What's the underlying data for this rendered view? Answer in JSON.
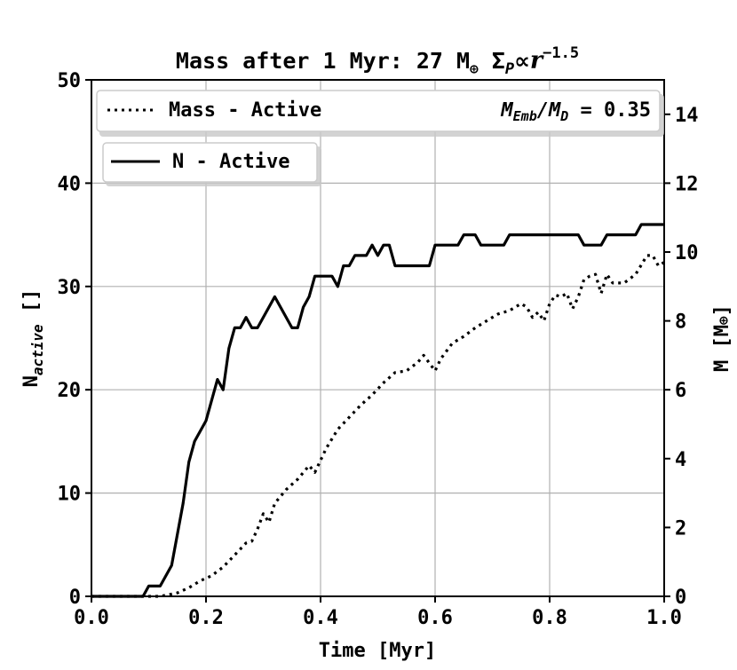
{
  "chart_data": {
    "type": "line",
    "title": {
      "prefix": "Mass after 1 Myr: 27 M",
      "earth_symbol": "⊕",
      "sigma": "Σ",
      "sigma_sub": "P",
      "prop": "∝",
      "r": "r",
      "exponent": "−1.5"
    },
    "xlabel": "Time [Myr]",
    "ylabel_left": {
      "main": "N",
      "sub": "active",
      "rest": " []"
    },
    "ylabel_right": {
      "main": "M [M",
      "symbol": "⊕",
      "close": "]"
    },
    "xlim": [
      0,
      1
    ],
    "ylim_left": [
      0,
      50
    ],
    "ylim_right": [
      0,
      15
    ],
    "x_ticks": [
      0,
      0.2,
      0.4,
      0.6,
      0.8,
      1
    ],
    "x_tick_labels": [
      "0.0",
      "0.2",
      "0.4",
      "0.6",
      "0.8",
      "1.0"
    ],
    "y_left_ticks": [
      0,
      10,
      20,
      30,
      40,
      50
    ],
    "y_left_tick_labels": [
      "0",
      "10",
      "20",
      "30",
      "40",
      "50"
    ],
    "y_right_ticks": [
      0,
      2,
      4,
      6,
      8,
      10,
      12,
      14
    ],
    "y_right_tick_labels": [
      "0",
      "2",
      "4",
      "6",
      "8",
      "10",
      "12",
      "14"
    ],
    "grid": true,
    "legend_top": {
      "label": "Mass - Active",
      "ratio": {
        "m": "M",
        "sub1": "Emb",
        "slash": "/M",
        "sub2": "D",
        "value": " = 0.35"
      }
    },
    "legend_second": {
      "label": "N - Active"
    },
    "series": [
      {
        "name": "N - Active",
        "axis": "left",
        "style": "solid",
        "points": [
          [
            0,
            0
          ],
          [
            0.09,
            0
          ],
          [
            0.1,
            1
          ],
          [
            0.12,
            1
          ],
          [
            0.14,
            3
          ],
          [
            0.16,
            9
          ],
          [
            0.17,
            13
          ],
          [
            0.18,
            15
          ],
          [
            0.2,
            17
          ],
          [
            0.22,
            21
          ],
          [
            0.23,
            20
          ],
          [
            0.24,
            24
          ],
          [
            0.25,
            26
          ],
          [
            0.26,
            26
          ],
          [
            0.27,
            27
          ],
          [
            0.28,
            26
          ],
          [
            0.29,
            26
          ],
          [
            0.32,
            29
          ],
          [
            0.35,
            26
          ],
          [
            0.36,
            26
          ],
          [
            0.37,
            28
          ],
          [
            0.38,
            29
          ],
          [
            0.39,
            31
          ],
          [
            0.42,
            31
          ],
          [
            0.43,
            30
          ],
          [
            0.44,
            32
          ],
          [
            0.45,
            32
          ],
          [
            0.46,
            33
          ],
          [
            0.48,
            33
          ],
          [
            0.49,
            34
          ],
          [
            0.5,
            33
          ],
          [
            0.51,
            34
          ],
          [
            0.52,
            34
          ],
          [
            0.53,
            32
          ],
          [
            0.59,
            32
          ],
          [
            0.6,
            34
          ],
          [
            0.64,
            34
          ],
          [
            0.65,
            35
          ],
          [
            0.67,
            35
          ],
          [
            0.68,
            34
          ],
          [
            0.72,
            34
          ],
          [
            0.73,
            35
          ],
          [
            0.85,
            35
          ],
          [
            0.86,
            34
          ],
          [
            0.89,
            34
          ],
          [
            0.9,
            35
          ],
          [
            0.95,
            35
          ],
          [
            0.96,
            36
          ],
          [
            1,
            36
          ]
        ]
      },
      {
        "name": "Mass - Active",
        "axis": "right",
        "style": "dotted",
        "points": [
          [
            0,
            0
          ],
          [
            0.08,
            0
          ],
          [
            0.12,
            0
          ],
          [
            0.15,
            0.1
          ],
          [
            0.17,
            0.25
          ],
          [
            0.19,
            0.45
          ],
          [
            0.21,
            0.6
          ],
          [
            0.23,
            0.85
          ],
          [
            0.25,
            1.2
          ],
          [
            0.27,
            1.55
          ],
          [
            0.28,
            1.6
          ],
          [
            0.29,
            1.95
          ],
          [
            0.3,
            2.4
          ],
          [
            0.31,
            2.15
          ],
          [
            0.32,
            2.7
          ],
          [
            0.34,
            3.1
          ],
          [
            0.36,
            3.4
          ],
          [
            0.38,
            3.8
          ],
          [
            0.39,
            3.6
          ],
          [
            0.41,
            4.3
          ],
          [
            0.43,
            4.85
          ],
          [
            0.45,
            5.2
          ],
          [
            0.47,
            5.55
          ],
          [
            0.49,
            5.85
          ],
          [
            0.51,
            6.2
          ],
          [
            0.53,
            6.5
          ],
          [
            0.55,
            6.55
          ],
          [
            0.57,
            6.8
          ],
          [
            0.58,
            7
          ],
          [
            0.6,
            6.55
          ],
          [
            0.61,
            6.9
          ],
          [
            0.63,
            7.35
          ],
          [
            0.65,
            7.55
          ],
          [
            0.67,
            7.8
          ],
          [
            0.69,
            8
          ],
          [
            0.71,
            8.2
          ],
          [
            0.73,
            8.3
          ],
          [
            0.75,
            8.5
          ],
          [
            0.76,
            8.4
          ],
          [
            0.77,
            8.1
          ],
          [
            0.78,
            8.25
          ],
          [
            0.79,
            8.0
          ],
          [
            0.8,
            8.5
          ],
          [
            0.81,
            8.75
          ],
          [
            0.82,
            8.7
          ],
          [
            0.83,
            8.8
          ],
          [
            0.84,
            8.35
          ],
          [
            0.85,
            8.7
          ],
          [
            0.86,
            9.2
          ],
          [
            0.87,
            9.3
          ],
          [
            0.88,
            9.35
          ],
          [
            0.89,
            8.8
          ],
          [
            0.9,
            9.35
          ],
          [
            0.91,
            9.1
          ],
          [
            0.93,
            9.1
          ],
          [
            0.95,
            9.35
          ],
          [
            0.97,
            9.9
          ],
          [
            0.98,
            9.9
          ],
          [
            0.99,
            9.6
          ],
          [
            1,
            9.7
          ]
        ]
      }
    ]
  }
}
